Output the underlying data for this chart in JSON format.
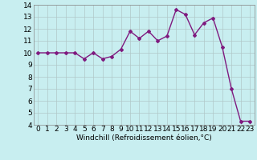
{
  "x": [
    0,
    1,
    2,
    3,
    4,
    5,
    6,
    7,
    8,
    9,
    10,
    11,
    12,
    13,
    14,
    15,
    16,
    17,
    18,
    19,
    20,
    21,
    22,
    23
  ],
  "y": [
    10.0,
    10.0,
    10.0,
    10.0,
    10.0,
    9.5,
    10.0,
    9.5,
    9.7,
    10.3,
    11.8,
    11.2,
    11.8,
    11.0,
    11.4,
    13.6,
    13.2,
    11.5,
    12.5,
    12.9,
    10.5,
    7.0,
    4.3,
    4.3
  ],
  "line_color": "#7f1a7f",
  "marker": "D",
  "markersize": 2,
  "linewidth": 1,
  "bg_color": "#c8eef0",
  "grid_color": "#b0c8c8",
  "xlabel": "Windchill (Refroidissement éolien,°C)",
  "xlim": [
    -0.5,
    23.5
  ],
  "ylim": [
    4,
    14
  ],
  "yticks": [
    4,
    5,
    6,
    7,
    8,
    9,
    10,
    11,
    12,
    13,
    14
  ],
  "xticks": [
    0,
    1,
    2,
    3,
    4,
    5,
    6,
    7,
    8,
    9,
    10,
    11,
    12,
    13,
    14,
    15,
    16,
    17,
    18,
    19,
    20,
    21,
    22,
    23
  ],
  "xlabel_fontsize": 6.5,
  "tick_fontsize": 6.5
}
